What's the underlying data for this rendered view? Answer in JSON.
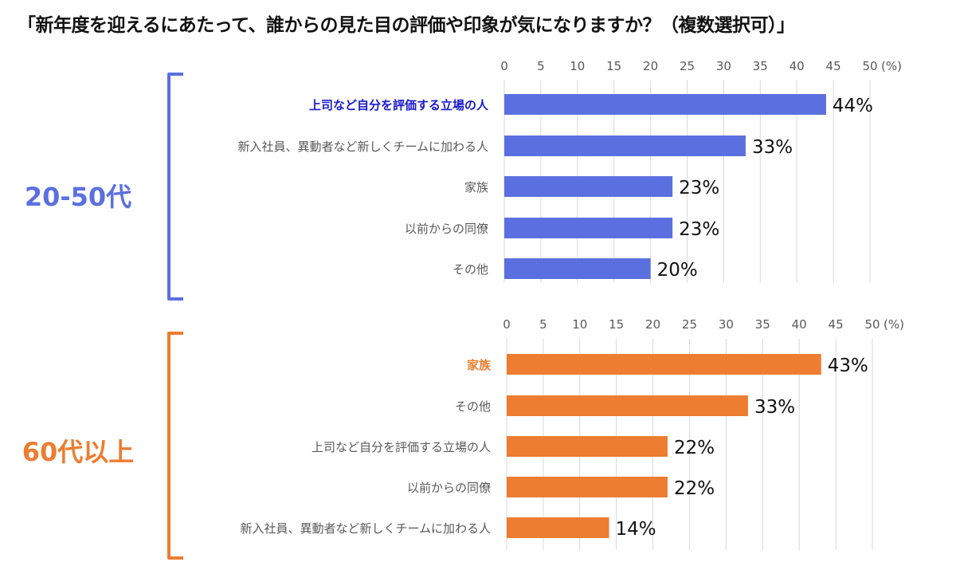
{
  "title": "「新年度を迎えるにあたって、誰からの見た目の評価や印象が気になりますか？（複数選択可）」",
  "chart_data": [
    {
      "type": "bar",
      "orientation": "horizontal",
      "group_label": "20-50代",
      "color": "#5b70e0",
      "highlight_color": "#1a1acc",
      "categories": [
        "上司など自分を評価する立場の人",
        "新入社員、異動者など新しくチームに加わる人",
        "家族",
        "以前からの同僚",
        "その他"
      ],
      "values": [
        44,
        33,
        23,
        23,
        20
      ],
      "labels": [
        "44%",
        "33%",
        "23%",
        "23%",
        "20%"
      ],
      "highlight_index": 0,
      "xlim": [
        0,
        50
      ],
      "ticks": [
        "0",
        "5",
        "10",
        "15",
        "20",
        "25",
        "30",
        "35",
        "40",
        "45",
        "50"
      ],
      "unit": "(%)",
      "grid": true
    },
    {
      "type": "bar",
      "orientation": "horizontal",
      "group_label": "60代以上",
      "color": "#ed7d31",
      "highlight_color": "#ed7d31",
      "categories": [
        "家族",
        "その他",
        "上司など自分を評価する立場の人",
        "以前からの同僚",
        "新入社員、異動者など新しくチームに加わる人"
      ],
      "values": [
        43,
        33,
        22,
        22,
        14
      ],
      "labels": [
        "43%",
        "33%",
        "22%",
        "22%",
        "14%"
      ],
      "highlight_index": 0,
      "xlim": [
        0,
        50
      ],
      "ticks": [
        "0",
        "5",
        "10",
        "15",
        "20",
        "25",
        "30",
        "35",
        "40",
        "45",
        "50"
      ],
      "unit": "(%)",
      "grid": true
    }
  ]
}
